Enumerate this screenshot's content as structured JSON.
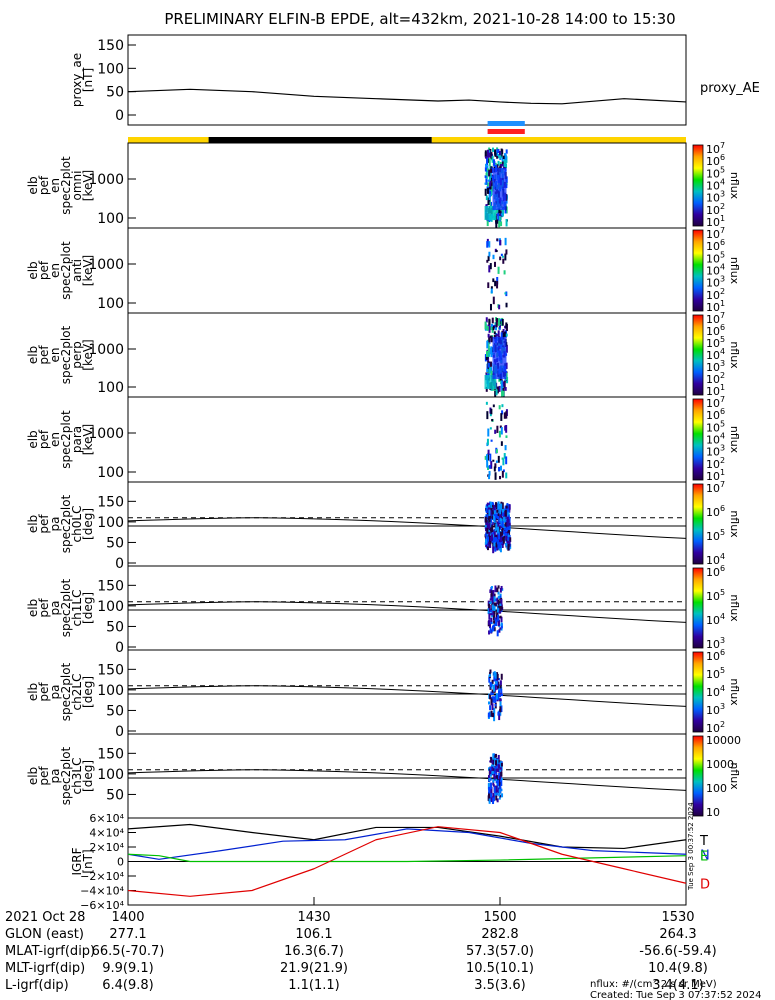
{
  "title": "PRELIMINARY ELFIN-B EPDE, alt=432km, 2021-10-28 14:00 to 15:30",
  "colors": {
    "bar_yellow": "#ffd400",
    "bar_black": "#000000",
    "bar_blue": "#1e90ff",
    "bar_red": "#ff2020",
    "igrf_T": "#000000",
    "igrf_N": "#0020d0",
    "igrf_E": "#00c000",
    "igrf_D": "#e00000"
  },
  "chart_data": [
    {
      "type": "line",
      "panel": "proxy_ae",
      "ylabel_lines": [
        "proxy_ae",
        "[nT]"
      ],
      "yticks": [
        "150",
        "100",
        "50",
        "0"
      ],
      "ylim": [
        0,
        150
      ],
      "legend": "proxy_AE",
      "x_minutes": [
        0,
        10,
        20,
        30,
        40,
        50,
        55,
        60,
        65,
        70,
        80,
        90
      ],
      "values": [
        50,
        55,
        50,
        40,
        35,
        30,
        32,
        28,
        25,
        24,
        35,
        28
      ]
    },
    {
      "type": "table",
      "panel": "status_bar",
      "segments": [
        {
          "from": 0,
          "to": 13,
          "color": "bar_yellow"
        },
        {
          "from": 13,
          "to": 49,
          "color": "bar_black"
        },
        {
          "from": 49,
          "to": 90,
          "color": "bar_yellow"
        }
      ],
      "science_blue": [
        58,
        64
      ],
      "science_red": [
        58,
        64
      ]
    },
    {
      "type": "heatmap",
      "panel": "omni",
      "ylabel_lines": [
        "elb",
        "pef",
        "en",
        "spec2plot",
        "omni",
        "[keV]"
      ],
      "yticks": [
        "1000",
        "100"
      ],
      "colorbar_ticks": [
        "10^7",
        "10^6",
        "10^5",
        "10^4",
        "10^3",
        "10^2",
        "10^1"
      ],
      "colorbar_label": "nflux"
    },
    {
      "type": "heatmap",
      "panel": "anti",
      "ylabel_lines": [
        "elb",
        "pef",
        "en",
        "spec2plot",
        "anti",
        "[keV]"
      ],
      "yticks": [
        "1000",
        "100"
      ],
      "colorbar_ticks": [
        "10^7",
        "10^6",
        "10^5",
        "10^4",
        "10^3",
        "10^2",
        "10^1"
      ],
      "colorbar_label": "nflux"
    },
    {
      "type": "heatmap",
      "panel": "perp",
      "ylabel_lines": [
        "elb",
        "pef",
        "en",
        "spec2plot",
        "perp",
        "[keV]"
      ],
      "yticks": [
        "1000",
        "100"
      ],
      "colorbar_ticks": [
        "10^7",
        "10^6",
        "10^5",
        "10^4",
        "10^3",
        "10^2",
        "10^1"
      ],
      "colorbar_label": "nflux"
    },
    {
      "type": "heatmap",
      "panel": "para",
      "ylabel_lines": [
        "elb",
        "pef",
        "en",
        "spec2plot",
        "para",
        "[keV]"
      ],
      "yticks": [
        "1000",
        "100"
      ],
      "colorbar_ticks": [
        "10^7",
        "10^6",
        "10^5",
        "10^4",
        "10^3",
        "10^2",
        "10^1"
      ],
      "colorbar_label": "nflux"
    },
    {
      "type": "heatmap",
      "panel": "ch0LC",
      "ylabel_lines": [
        "elb",
        "pef",
        "pa",
        "spec2plot",
        "ch0LC",
        "[deg]"
      ],
      "yticks": [
        "150",
        "100",
        "50",
        "0"
      ],
      "ylim": [
        0,
        180
      ],
      "colorbar_ticks": [
        "10^7",
        "10^6",
        "10^5",
        "10^4"
      ],
      "colorbar_label": "nflux"
    },
    {
      "type": "heatmap",
      "panel": "ch1LC",
      "ylabel_lines": [
        "elb",
        "pef",
        "pa",
        "spec2plot",
        "ch1LC",
        "[deg]"
      ],
      "yticks": [
        "150",
        "100",
        "50",
        "0"
      ],
      "ylim": [
        0,
        180
      ],
      "colorbar_ticks": [
        "10^6",
        "10^5",
        "10^4",
        "10^3"
      ],
      "colorbar_label": "nflux"
    },
    {
      "type": "heatmap",
      "panel": "ch2LC",
      "ylabel_lines": [
        "elb",
        "pef",
        "pa",
        "spec2plot",
        "ch2LC",
        "[deg]"
      ],
      "yticks": [
        "150",
        "100",
        "50",
        "0"
      ],
      "ylim": [
        0,
        180
      ],
      "colorbar_ticks": [
        "10^6",
        "10^5",
        "10^4",
        "10^3",
        "10^2"
      ],
      "colorbar_label": "nflux"
    },
    {
      "type": "heatmap",
      "panel": "ch3LC",
      "ylabel_lines": [
        "elb",
        "pef",
        "pa",
        "spec2plot",
        "ch3LC",
        "[deg]"
      ],
      "yticks": [
        "150",
        "100",
        "50"
      ],
      "ylim": [
        0,
        180
      ],
      "colorbar_ticks": [
        "10000",
        "1000",
        "100",
        "10"
      ],
      "colorbar_label": "nflux"
    },
    {
      "type": "line",
      "panel": "igrf",
      "ylabel_lines": [
        "IGRF",
        "[nT]"
      ],
      "yticks": [
        "6×10⁴",
        "4×10⁴",
        "2×10⁴",
        "0",
        "−2×10⁴",
        "−4×10⁴",
        "−6×10⁴"
      ],
      "ylim": [
        -60000,
        60000
      ],
      "series": [
        {
          "name": "T",
          "color": "igrf_T",
          "x": [
            0,
            10,
            20,
            30,
            40,
            50,
            60,
            70,
            80,
            90
          ],
          "values": [
            45000,
            51000,
            40000,
            30000,
            47000,
            47000,
            35000,
            20000,
            18000,
            30000
          ]
        },
        {
          "name": "N",
          "color": "igrf_N",
          "x": [
            0,
            5,
            15,
            25,
            35,
            45,
            55,
            65,
            75,
            90
          ],
          "values": [
            10000,
            3000,
            15000,
            28000,
            30000,
            45000,
            40000,
            25000,
            15000,
            10000
          ]
        },
        {
          "name": "E",
          "color": "igrf_E",
          "x": [
            0,
            5,
            10,
            20,
            30,
            45,
            60,
            75,
            90
          ],
          "values": [
            10000,
            8000,
            0,
            0,
            0,
            0,
            2000,
            5000,
            8000
          ]
        },
        {
          "name": "D",
          "color": "igrf_D",
          "x": [
            0,
            10,
            20,
            30,
            40,
            50,
            60,
            70,
            80,
            90
          ],
          "values": [
            -40000,
            -48000,
            -40000,
            -10000,
            30000,
            48000,
            40000,
            10000,
            -10000,
            -30000
          ]
        }
      ]
    }
  ],
  "x_axis": {
    "labels": [
      "1400",
      "1430",
      "1500",
      "1530"
    ],
    "minutes": [
      0,
      30,
      60,
      90
    ]
  },
  "bottom_rows": [
    {
      "label": "2021 Oct 28",
      "values": [
        "1400",
        "1430",
        "1500",
        "1530"
      ]
    },
    {
      "label": "GLON (east)",
      "values": [
        "277.1",
        "106.1",
        "282.8",
        "264.3"
      ]
    },
    {
      "label": "MLAT-igrf(dip)",
      "values": [
        "66.5(-70.7)",
        "16.3(6.7)",
        "57.3(57.0)",
        "-56.6(-59.4)"
      ]
    },
    {
      "label": "MLT-igrf(dip)",
      "values": [
        "9.9(9.1)",
        "21.9(21.9)",
        "10.5(10.1)",
        "10.4(9.8)"
      ]
    },
    {
      "label": "L-igrf(dip)",
      "values": [
        "6.4(9.8)",
        "1.1(1.1)",
        "3.5(3.6)",
        "3.4(4.1)"
      ]
    }
  ],
  "footer": {
    "units": "nflux: #/(cm^2 s sr MeV)",
    "created": "Created: Tue Sep  3 07:37:52 2024",
    "side_stamp": "Tue Sep  3 00:37:52 2024"
  }
}
